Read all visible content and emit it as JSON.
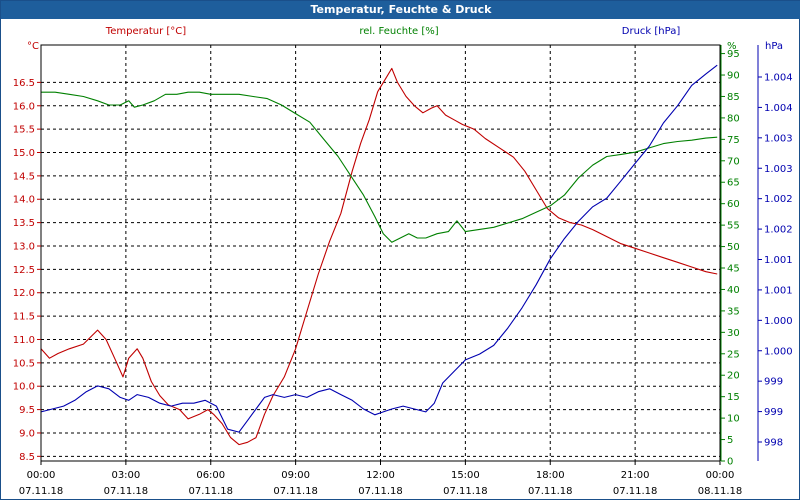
{
  "window": {
    "title": "Temperatur, Feuchte & Druck"
  },
  "colors": {
    "temperature": "#c00000",
    "humidity": "#008000",
    "pressure": "#0000b0",
    "grid": "#000000",
    "titlebar": "#1e5e9c"
  },
  "chart_data": {
    "type": "line",
    "title": "Temperatur, Feuchte & Druck",
    "grid": true,
    "x_axis": {
      "range": [
        "07.11.18 00:00",
        "08.11.18 00:00"
      ],
      "ticks": [
        {
          "time": "00:00",
          "date": "07.11.18"
        },
        {
          "time": "03:00",
          "date": "07.11.18"
        },
        {
          "time": "06:00",
          "date": "07.11.18"
        },
        {
          "time": "09:00",
          "date": "07.11.18"
        },
        {
          "time": "12:00",
          "date": "07.11.18"
        },
        {
          "time": "15:00",
          "date": "07.11.18"
        },
        {
          "time": "18:00",
          "date": "07.11.18"
        },
        {
          "time": "21:00",
          "date": "07.11.18"
        },
        {
          "time": "00:00",
          "date": "08.11.18"
        }
      ]
    },
    "y_axes": {
      "temperature": {
        "unit": "°C",
        "ylim": [
          8.4,
          17.3
        ],
        "ticks": [
          "8.5",
          "9.0",
          "9.5",
          "10.0",
          "10.5",
          "11.0",
          "11.5",
          "12.0",
          "12.5",
          "13.0",
          "13.5",
          "14.0",
          "14.5",
          "15.0",
          "15.5",
          "16.0",
          "16.5"
        ]
      },
      "humidity": {
        "unit": "%",
        "ylim": [
          0,
          97
        ],
        "ticks": [
          "0",
          "5",
          "10",
          "15",
          "20",
          "25",
          "30",
          "35",
          "40",
          "45",
          "50",
          "55",
          "60",
          "65",
          "70",
          "75",
          "80",
          "85",
          "90",
          "95"
        ]
      },
      "pressure": {
        "unit": "hPa",
        "ylim": [
          997.7,
          1004.9
        ],
        "ticks": [
          "998",
          "999",
          "999",
          "1.000",
          "1.000",
          "1.001",
          "1.001",
          "1.002",
          "1.002",
          "1.003",
          "1.003",
          "1.004",
          "1.004"
        ]
      }
    },
    "series": [
      {
        "name": "Temperatur [°C]",
        "axis": "temperature",
        "time_h": [
          0,
          0.3,
          0.6,
          1.0,
          1.5,
          2.0,
          2.3,
          2.6,
          2.9,
          3.1,
          3.4,
          3.6,
          3.9,
          4.2,
          4.5,
          4.9,
          5.2,
          5.6,
          5.9,
          6.1,
          6.4,
          6.7,
          7.0,
          7.3,
          7.6,
          7.9,
          8.2,
          8.6,
          9.0,
          9.4,
          9.8,
          10.2,
          10.6,
          11.0,
          11.3,
          11.6,
          11.9,
          12.2,
          12.4,
          12.6,
          12.9,
          13.2,
          13.5,
          13.8,
          14.0,
          14.3,
          14.6,
          14.9,
          15.3,
          15.7,
          16.2,
          16.7,
          17.1,
          17.5,
          17.9,
          18.3,
          18.7,
          19.1,
          19.5,
          20.0,
          20.5,
          21.0,
          21.5,
          22.0,
          22.5,
          23.0,
          23.5,
          23.9
        ],
        "values": [
          10.8,
          10.6,
          10.7,
          10.8,
          10.9,
          11.2,
          11.0,
          10.6,
          10.2,
          10.6,
          10.8,
          10.6,
          10.1,
          9.8,
          9.6,
          9.5,
          9.3,
          9.4,
          9.5,
          9.4,
          9.2,
          8.9,
          8.75,
          8.8,
          8.9,
          9.4,
          9.8,
          10.2,
          10.8,
          11.6,
          12.4,
          13.1,
          13.7,
          14.6,
          15.2,
          15.7,
          16.3,
          16.6,
          16.8,
          16.5,
          16.2,
          16.0,
          15.85,
          15.95,
          16.0,
          15.8,
          15.7,
          15.6,
          15.5,
          15.3,
          15.1,
          14.9,
          14.6,
          14.2,
          13.8,
          13.6,
          13.5,
          13.45,
          13.35,
          13.2,
          13.05,
          12.95,
          12.85,
          12.75,
          12.65,
          12.55,
          12.45,
          12.4
        ]
      },
      {
        "name": "rel. Feuchte [%]",
        "axis": "humidity",
        "time_h": [
          0,
          0.5,
          1.0,
          1.5,
          2.0,
          2.4,
          2.8,
          3.1,
          3.3,
          3.6,
          4.0,
          4.4,
          4.8,
          5.2,
          5.6,
          6.0,
          6.5,
          7.0,
          7.5,
          8.0,
          8.5,
          9.0,
          9.5,
          10.0,
          10.5,
          11.0,
          11.4,
          11.8,
          12.1,
          12.4,
          12.7,
          13.0,
          13.3,
          13.6,
          14.0,
          14.4,
          14.7,
          15.0,
          15.5,
          16.0,
          16.5,
          17.0,
          17.5,
          18.0,
          18.5,
          19.0,
          19.5,
          20.0,
          20.5,
          21.0,
          21.5,
          22.0,
          22.5,
          23.0,
          23.5,
          23.9
        ],
        "values": [
          86,
          86,
          85.5,
          85,
          84,
          83,
          83,
          84,
          82.5,
          83,
          84,
          85.5,
          85.5,
          86,
          86,
          85.5,
          85.5,
          85.5,
          85,
          84.5,
          83,
          81,
          79,
          75,
          71,
          66,
          62,
          57,
          53,
          51,
          52,
          53,
          52,
          52,
          53,
          53.5,
          56,
          53.5,
          54,
          54.5,
          55.5,
          56.5,
          58,
          59.5,
          62,
          66,
          69,
          71,
          71.5,
          72,
          73,
          74,
          74.5,
          74.8,
          75.3,
          75.5
        ]
      },
      {
        "name": "Druck [hPa]",
        "axis": "pressure",
        "time_h": [
          0,
          0.4,
          0.8,
          1.2,
          1.6,
          2.0,
          2.4,
          2.8,
          3.1,
          3.4,
          3.8,
          4.2,
          4.6,
          5.0,
          5.4,
          5.8,
          6.2,
          6.6,
          7.0,
          7.3,
          7.6,
          7.9,
          8.2,
          8.6,
          9.0,
          9.4,
          9.8,
          10.2,
          10.6,
          11.0,
          11.4,
          11.8,
          12.1,
          12.4,
          12.8,
          13.2,
          13.6,
          13.9,
          14.2,
          14.6,
          15.0,
          15.5,
          16.0,
          16.5,
          17.0,
          17.5,
          18.0,
          18.5,
          19.0,
          19.5,
          20.0,
          20.5,
          21.0,
          21.5,
          22.0,
          22.5,
          23.0,
          23.5,
          23.9
        ],
        "values": [
          998.55,
          998.6,
          998.65,
          998.75,
          998.9,
          999.0,
          998.95,
          998.8,
          998.75,
          998.85,
          998.8,
          998.7,
          998.65,
          998.7,
          998.7,
          998.75,
          998.65,
          998.25,
          998.2,
          998.4,
          998.6,
          998.8,
          998.85,
          998.8,
          998.85,
          998.8,
          998.9,
          998.95,
          998.85,
          998.75,
          998.6,
          998.5,
          998.55,
          998.6,
          998.65,
          998.6,
          998.55,
          998.7,
          999.05,
          999.25,
          999.45,
          999.55,
          999.7,
          1000.0,
          1000.35,
          1000.75,
          1001.2,
          1001.55,
          1001.85,
          1002.1,
          1002.25,
          1002.55,
          1002.85,
          1003.15,
          1003.55,
          1003.85,
          1004.2,
          1004.4,
          1004.55
        ]
      }
    ]
  }
}
